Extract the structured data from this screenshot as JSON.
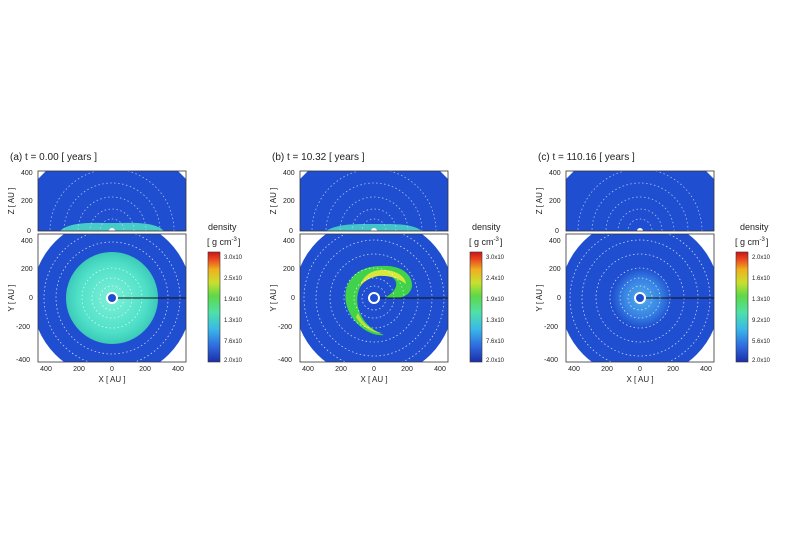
{
  "panels": [
    {
      "title": "(a) t = 0.00 [ years ]",
      "xz_y_label": "Z [ AU ]",
      "xy_y_label": "Y [ AU ]",
      "x_label": "X [ AU ]",
      "xz_ticks": [
        "400",
        "200",
        "0"
      ],
      "xy_ticks": [
        "400",
        "200",
        "0",
        "-200",
        "-400"
      ],
      "x_ticks": [
        "400",
        "200",
        "0",
        "200",
        "400"
      ],
      "colorbar": {
        "title": "density",
        "units": "[ g cm",
        "exponent": "-3",
        "units_close": "]",
        "ticks": [
          "3.0x10",
          "2.5x10",
          "1.9x10",
          "1.3x10",
          "7.6x10",
          "2.0x10"
        ]
      }
    },
    {
      "title": "(b) t = 10.32 [ years ]",
      "xz_y_label": "Z [ AU ]",
      "xy_y_label": "Y [ AU ]",
      "x_label": "X [ AU ]",
      "xz_ticks": [
        "400",
        "200",
        "0"
      ],
      "xy_ticks": [
        "400",
        "200",
        "0",
        "-200",
        "-400"
      ],
      "x_ticks": [
        "400",
        "200",
        "0",
        "200",
        "400"
      ],
      "colorbar": {
        "title": "density",
        "units": "[ g cm",
        "exponent": "-3",
        "units_close": "]",
        "ticks": [
          "3.0x10",
          "2.4x10",
          "1.9x10",
          "1.3x10",
          "7.6x10",
          "2.0x10"
        ]
      }
    },
    {
      "title": "(c) t = 110.16 [ years ]",
      "xz_y_label": "Z [ AU ]",
      "xy_y_label": "Y [ AU ]",
      "x_label": "X [ AU ]",
      "xz_ticks": [
        "400",
        "200",
        "0"
      ],
      "xy_ticks": [
        "400",
        "200",
        "0",
        "-200",
        "-400"
      ],
      "x_ticks": [
        "400",
        "200",
        "0",
        "200",
        "400"
      ],
      "colorbar": {
        "title": "density",
        "units": "[ g cm",
        "exponent": "-3",
        "units_close": "]",
        "ticks": [
          "2.0x10",
          "1.6x10",
          "1.3x10",
          "9.2x10",
          "5.6x10",
          "2.0x10"
        ]
      }
    }
  ],
  "colors": {
    "background_flow": "#1f4fd0",
    "disk_light": "#4fe0c8",
    "arm_green": "#3fd24a",
    "arm_yellow": "#d8e83a",
    "star_white": "#ffffff",
    "colorbar_stops": [
      "#1b2fa8",
      "#2f6de0",
      "#3ab8e8",
      "#4fe0a8",
      "#5ed848",
      "#c8e030",
      "#f0b020",
      "#e84020",
      "#c81818"
    ]
  }
}
